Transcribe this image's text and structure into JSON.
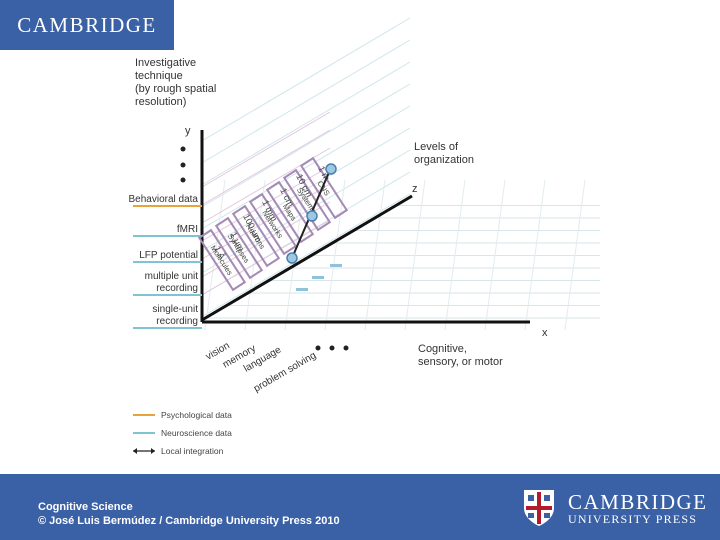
{
  "header": {
    "logo_text": "CAMBRIDGE"
  },
  "diagram": {
    "y_axis_title": [
      "Investigative",
      "technique",
      "(by rough spatial",
      "resolution)"
    ],
    "y_label": "y",
    "z_title": [
      "Levels of",
      "organization"
    ],
    "z_label": "z",
    "x_label": "x",
    "x_title": [
      "Cognitive,",
      "sensory, or motor"
    ],
    "techniques": [
      {
        "label": [
          "Behavioral data"
        ],
        "color": "#e9a33b"
      },
      {
        "label": [
          "fMRI"
        ],
        "color": "#7ec4d2"
      },
      {
        "label": [
          "LFP potential"
        ],
        "color": "#7ec4d2"
      },
      {
        "label": [
          "multiple unit",
          "recording"
        ],
        "color": "#7ec4d2"
      },
      {
        "label": [
          "single-unit",
          "recording"
        ],
        "color": "#7ec4d2"
      }
    ],
    "scales": [
      "1 Å",
      "1 μm",
      "100 μm",
      "1 mm",
      "1 cm",
      "10 cm",
      "1 m"
    ],
    "levels": [
      "Molecules",
      "Synapses",
      "Neurons",
      "Networks",
      "Maps",
      "Systems",
      "CNS"
    ],
    "domains": [
      "vision",
      "memory",
      "language",
      "problem solving"
    ],
    "legend": [
      {
        "label": "Psychological data",
        "color": "#e9a33b",
        "kind": "line"
      },
      {
        "label": "Neuroscience data",
        "color": "#7ec4d2",
        "kind": "line"
      },
      {
        "label": "Local integration",
        "color": "#222222",
        "kind": "arrow"
      }
    ]
  },
  "footer": {
    "line1": "Cognitive Science",
    "line2": "© José Luis Bermúdez / Cambridge University Press 2010",
    "press_name": "CAMBRIDGE",
    "press_sub": "UNIVERSITY PRESS"
  }
}
